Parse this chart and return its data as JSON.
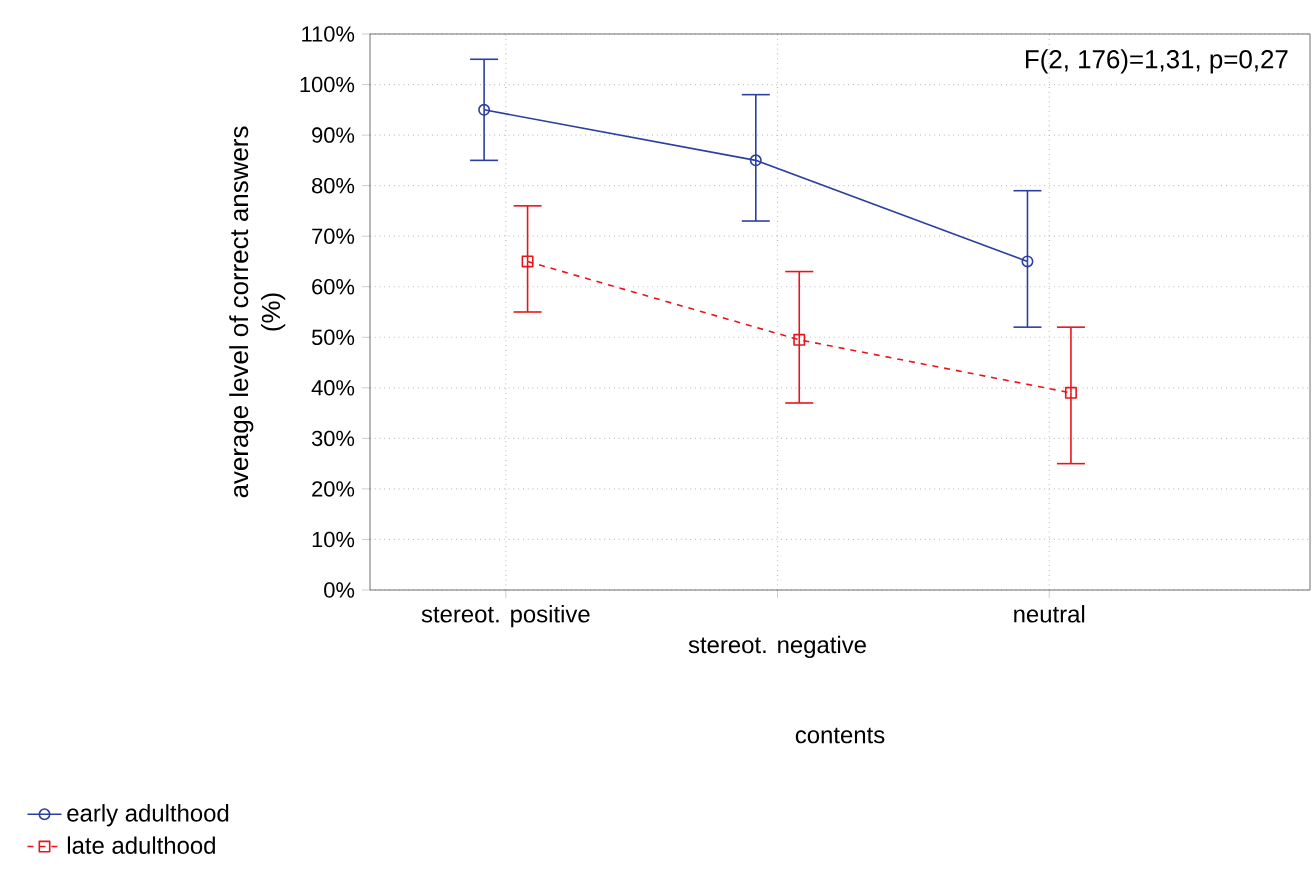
{
  "chart_data": {
    "type": "line",
    "categories": [
      "stereot. positive",
      "stereot. negative",
      "neutral"
    ],
    "xlabel": "contents",
    "ylabel": "average level of correct answers (%)",
    "ylim": [
      0,
      110
    ],
    "yticks": [
      {
        "value": 0,
        "label": "0%"
      },
      {
        "value": 10,
        "label": "10%"
      },
      {
        "value": 20,
        "label": "20%"
      },
      {
        "value": 30,
        "label": "30%"
      },
      {
        "value": 40,
        "label": "40%"
      },
      {
        "value": 50,
        "label": "50%"
      },
      {
        "value": 60,
        "label": "60%"
      },
      {
        "value": 70,
        "label": "70%"
      },
      {
        "value": 80,
        "label": "80%"
      },
      {
        "value": 90,
        "label": "90%"
      },
      {
        "value": 100,
        "label": "100%"
      },
      {
        "value": 110,
        "label": "110%"
      }
    ],
    "grid": true,
    "legend": "bottom left",
    "annotations": [
      "F(2, 176)=1,31, p=0,27"
    ],
    "series": [
      {
        "name": "early adulthood",
        "color": "#2a3fa0",
        "marker": "circle",
        "line_style": "solid",
        "values": [
          95,
          85,
          65
        ],
        "errors": [
          [
            85,
            105
          ],
          [
            73,
            98
          ],
          [
            52,
            79
          ]
        ]
      },
      {
        "name": "late adulthood",
        "color": "#e8141c",
        "marker": "square",
        "line_style": "dashed",
        "values": [
          65,
          49.5,
          39
        ],
        "errors": [
          [
            55,
            76
          ],
          [
            37,
            63
          ],
          [
            25,
            52
          ]
        ]
      }
    ]
  }
}
